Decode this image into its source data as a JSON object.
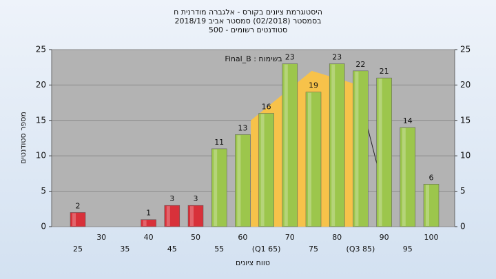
{
  "chart_data": {
    "type": "bar",
    "title": [
      "היסטוגרמת ציונים בקורס - אלגברה מודרנית ח",
      "בסמסטר (02/2018)  סמסטר אביב 2018/19",
      "סטודנטים רשומים - 500"
    ],
    "annotation": "בשימוח : Final_B",
    "x_label": "טווח ציונים",
    "y_label": "מספר סטודנטים",
    "categories": [
      "25",
      "30",
      "35",
      "40",
      "45",
      "50",
      "55",
      "60",
      "(Q1 65)",
      "70",
      "75",
      "80",
      "(Q3 85)",
      "90",
      "95",
      "100"
    ],
    "values": [
      2,
      null,
      null,
      1,
      3,
      3,
      11,
      13,
      16,
      23,
      19,
      23,
      22,
      21,
      14,
      6
    ],
    "colors": [
      "#d8313a",
      null,
      null,
      "#d8313a",
      "#d8313a",
      "#d8313a",
      "#9cc64c",
      "#9cc64c",
      "#9cc64c",
      "#9cc64c",
      "#9cc64c",
      "#9cc64c",
      "#9cc64c",
      "#9cc64c",
      "#9cc64c",
      "#9cc64c"
    ],
    "area": {
      "color": "#f7c24a",
      "x": [
        62,
        75,
        80,
        85
      ],
      "values": [
        15,
        22,
        21,
        20
      ]
    },
    "line": {
      "color": "#222222",
      "x": [
        85,
        90
      ],
      "values": [
        19,
        6
      ]
    },
    "ylim": [
      0,
      25
    ],
    "yticks": [
      0,
      5,
      10,
      15,
      20,
      25
    ],
    "y2lim": [
      0,
      25
    ],
    "y2ticks": [
      0,
      5,
      10,
      15,
      20,
      25
    ],
    "xlim": [
      19.5,
      105.5
    ],
    "grid": true
  }
}
